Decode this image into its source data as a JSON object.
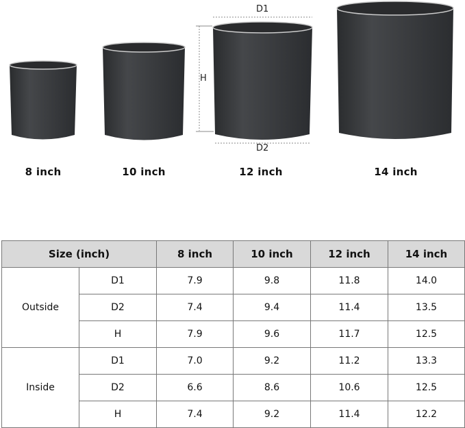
{
  "pots": [
    {
      "label": "8 inch"
    },
    {
      "label": "10 inch"
    },
    {
      "label": "12 inch"
    },
    {
      "label": "14 inch"
    }
  ],
  "dimension_labels": {
    "top": "D1",
    "bottom": "D2",
    "height": "H"
  },
  "pot_color": "#3a3c3f",
  "table": {
    "header": [
      "Size (inch)",
      "8 inch",
      "10 inch",
      "12 inch",
      "14 inch"
    ],
    "header_bg": "#d9d9d9",
    "groups": [
      {
        "name": "Outside",
        "rows": [
          {
            "label": "D1",
            "values": [
              "7.9",
              "9.8",
              "11.8",
              "14.0"
            ]
          },
          {
            "label": "D2",
            "values": [
              "7.4",
              "9.4",
              "11.4",
              "13.5"
            ]
          },
          {
            "label": "H",
            "values": [
              "7.9",
              "9.6",
              "11.7",
              "12.5"
            ]
          }
        ]
      },
      {
        "name": "Inside",
        "rows": [
          {
            "label": "D1",
            "values": [
              "7.0",
              "9.2",
              "11.2",
              "13.3"
            ]
          },
          {
            "label": "D2",
            "values": [
              "6.6",
              "8.6",
              "10.6",
              "12.5"
            ]
          },
          {
            "label": "H",
            "values": [
              "7.4",
              "9.2",
              "11.4",
              "12.2"
            ]
          }
        ]
      }
    ]
  }
}
